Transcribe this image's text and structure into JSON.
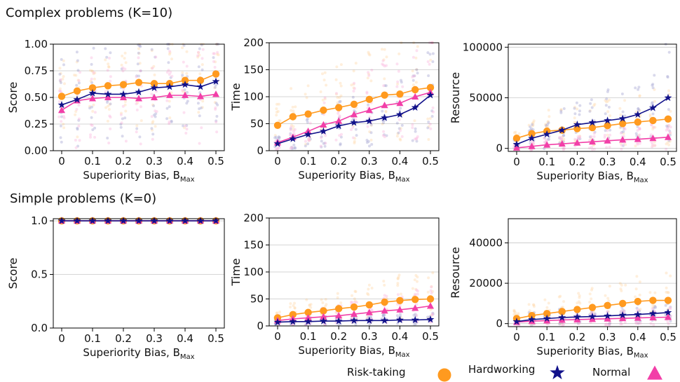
{
  "headers": {
    "top": "Complex problems (K=10)",
    "bottom": "Simple problems (K=0)"
  },
  "legend": {
    "items": [
      "Risk-taking",
      "Hardworking",
      "Normal"
    ]
  },
  "colors": {
    "risk_taking": "#ff9a1f",
    "hardworking": "#11118a",
    "normal": "#f23fa8"
  },
  "chart_data": [
    {
      "type": "line",
      "row": "complex",
      "ylabel": "Score",
      "xlabel_main": "Superiority Bias, B",
      "xlabel_sub": "Max",
      "x": [
        0,
        0.05,
        0.1,
        0.15,
        0.2,
        0.25,
        0.3,
        0.35,
        0.4,
        0.45,
        0.5
      ],
      "xticks": [
        "0",
        "0.1",
        "0.2",
        "0.3",
        "0.4",
        "0.5"
      ],
      "ylim": [
        0,
        1
      ],
      "yticks": [
        "0.00",
        "0.25",
        "0.50",
        "0.75",
        "1.00"
      ],
      "grid": true,
      "series": [
        {
          "name": "Risk-taking",
          "values": [
            0.51,
            0.56,
            0.59,
            0.61,
            0.62,
            0.64,
            0.63,
            0.63,
            0.66,
            0.66,
            0.72
          ]
        },
        {
          "name": "Hardworking",
          "values": [
            0.43,
            0.48,
            0.54,
            0.53,
            0.53,
            0.55,
            0.59,
            0.6,
            0.62,
            0.6,
            0.65
          ]
        },
        {
          "name": "Normal",
          "values": [
            0.38,
            0.47,
            0.49,
            0.5,
            0.5,
            0.49,
            0.5,
            0.52,
            0.52,
            0.51,
            0.53
          ]
        }
      ]
    },
    {
      "type": "line",
      "row": "complex",
      "ylabel": "Time",
      "xlabel_main": "Superiority Bias, B",
      "xlabel_sub": "Max",
      "x": [
        0,
        0.05,
        0.1,
        0.15,
        0.2,
        0.25,
        0.3,
        0.35,
        0.4,
        0.45,
        0.5
      ],
      "xticks": [
        "0",
        "0.1",
        "0.2",
        "0.3",
        "0.4",
        "0.5"
      ],
      "ylim": [
        0,
        200
      ],
      "yticks": [
        "0",
        "50",
        "100",
        "150",
        "200"
      ],
      "grid": true,
      "series": [
        {
          "name": "Risk-taking",
          "values": [
            47,
            63,
            68,
            75,
            80,
            86,
            95,
            103,
            105,
            113,
            117
          ]
        },
        {
          "name": "Hardworking",
          "values": [
            13,
            22,
            30,
            36,
            46,
            52,
            55,
            61,
            67,
            80,
            103
          ]
        },
        {
          "name": "Normal",
          "values": [
            15,
            25,
            36,
            48,
            55,
            67,
            75,
            84,
            88,
            100,
            108
          ]
        }
      ]
    },
    {
      "type": "line",
      "row": "complex",
      "ylabel": "Resource",
      "xlabel_main": "Superiority Bias, B",
      "xlabel_sub": "Max",
      "x": [
        0,
        0.05,
        0.1,
        0.15,
        0.2,
        0.25,
        0.3,
        0.35,
        0.4,
        0.45,
        0.5
      ],
      "xticks": [
        "0",
        "0.1",
        "0.2",
        "0.3",
        "0.4",
        "0.5"
      ],
      "ylim": [
        -3000,
        103000
      ],
      "yticks": [
        "0",
        "50000",
        "100000"
      ],
      "grid": true,
      "series": [
        {
          "name": "Risk-taking",
          "values": [
            10000,
            14500,
            17000,
            18000,
            19500,
            20500,
            22500,
            24500,
            26000,
            27500,
            29000
          ]
        },
        {
          "name": "Hardworking",
          "values": [
            4000,
            10000,
            14000,
            18000,
            23500,
            25500,
            27500,
            29500,
            33500,
            40000,
            50000
          ]
        },
        {
          "name": "Normal",
          "values": [
            500,
            2000,
            3500,
            4500,
            5500,
            6500,
            7500,
            8500,
            9000,
            10000,
            11000
          ]
        }
      ]
    },
    {
      "type": "line",
      "row": "simple",
      "ylabel": "Score",
      "xlabel_main": "Superiority Bias, B",
      "xlabel_sub": "Max",
      "x": [
        0,
        0.05,
        0.1,
        0.15,
        0.2,
        0.25,
        0.3,
        0.35,
        0.4,
        0.45,
        0.5
      ],
      "xticks": [
        "0",
        "0.1",
        "0.2",
        "0.3",
        "0.4",
        "0.5"
      ],
      "ylim": [
        0,
        1.02
      ],
      "yticks": [
        "0.0",
        "0.5",
        "1.0"
      ],
      "grid": true,
      "series": [
        {
          "name": "Risk-taking",
          "values": [
            1,
            1,
            1,
            1,
            1,
            1,
            1,
            1,
            1,
            1,
            1
          ]
        },
        {
          "name": "Hardworking",
          "values": [
            1,
            1,
            1,
            1,
            1,
            1,
            1,
            1,
            1,
            1,
            1
          ]
        },
        {
          "name": "Normal",
          "values": [
            1,
            1,
            1,
            1,
            1,
            1,
            1,
            1,
            1,
            1,
            1
          ]
        }
      ]
    },
    {
      "type": "line",
      "row": "simple",
      "ylabel": "Time",
      "xlabel_main": "Superiority Bias, B",
      "xlabel_sub": "Max",
      "x": [
        0,
        0.05,
        0.1,
        0.15,
        0.2,
        0.25,
        0.3,
        0.35,
        0.4,
        0.45,
        0.5
      ],
      "xticks": [
        "0",
        "0.1",
        "0.2",
        "0.3",
        "0.4",
        "0.5"
      ],
      "ylim": [
        0,
        200
      ],
      "yticks": [
        "0",
        "50",
        "100",
        "150",
        "200"
      ],
      "grid": true,
      "series": [
        {
          "name": "Risk-taking",
          "values": [
            15,
            21,
            25,
            28,
            32,
            35,
            39,
            44,
            47,
            49,
            50
          ]
        },
        {
          "name": "Hardworking",
          "values": [
            7,
            8,
            8,
            9,
            9,
            10,
            10,
            10,
            11,
            11,
            12
          ]
        },
        {
          "name": "Normal",
          "values": [
            10,
            13,
            15,
            17,
            19,
            22,
            25,
            28,
            30,
            33,
            37
          ]
        }
      ]
    },
    {
      "type": "line",
      "row": "simple",
      "ylabel": "Resource",
      "xlabel_main": "Superiority Bias, B",
      "xlabel_sub": "Max",
      "x": [
        0,
        0.05,
        0.1,
        0.15,
        0.2,
        0.25,
        0.3,
        0.35,
        0.4,
        0.45,
        0.5
      ],
      "xticks": [
        "0",
        "0.1",
        "0.2",
        "0.3",
        "0.4",
        "0.5"
      ],
      "ylim": [
        -1500,
        52000
      ],
      "yticks": [
        "0",
        "20000",
        "40000"
      ],
      "grid": true,
      "series": [
        {
          "name": "Risk-taking",
          "values": [
            2500,
            4000,
            5000,
            6000,
            7000,
            8000,
            9000,
            10000,
            11000,
            11500,
            11500
          ]
        },
        {
          "name": "Hardworking",
          "values": [
            1000,
            2000,
            2500,
            3000,
            3300,
            3500,
            3800,
            4200,
            4500,
            5000,
            5500
          ]
        },
        {
          "name": "Normal",
          "values": [
            800,
            1200,
            1500,
            1800,
            2000,
            2200,
            2400,
            2600,
            2800,
            3000,
            3200
          ]
        }
      ]
    }
  ]
}
